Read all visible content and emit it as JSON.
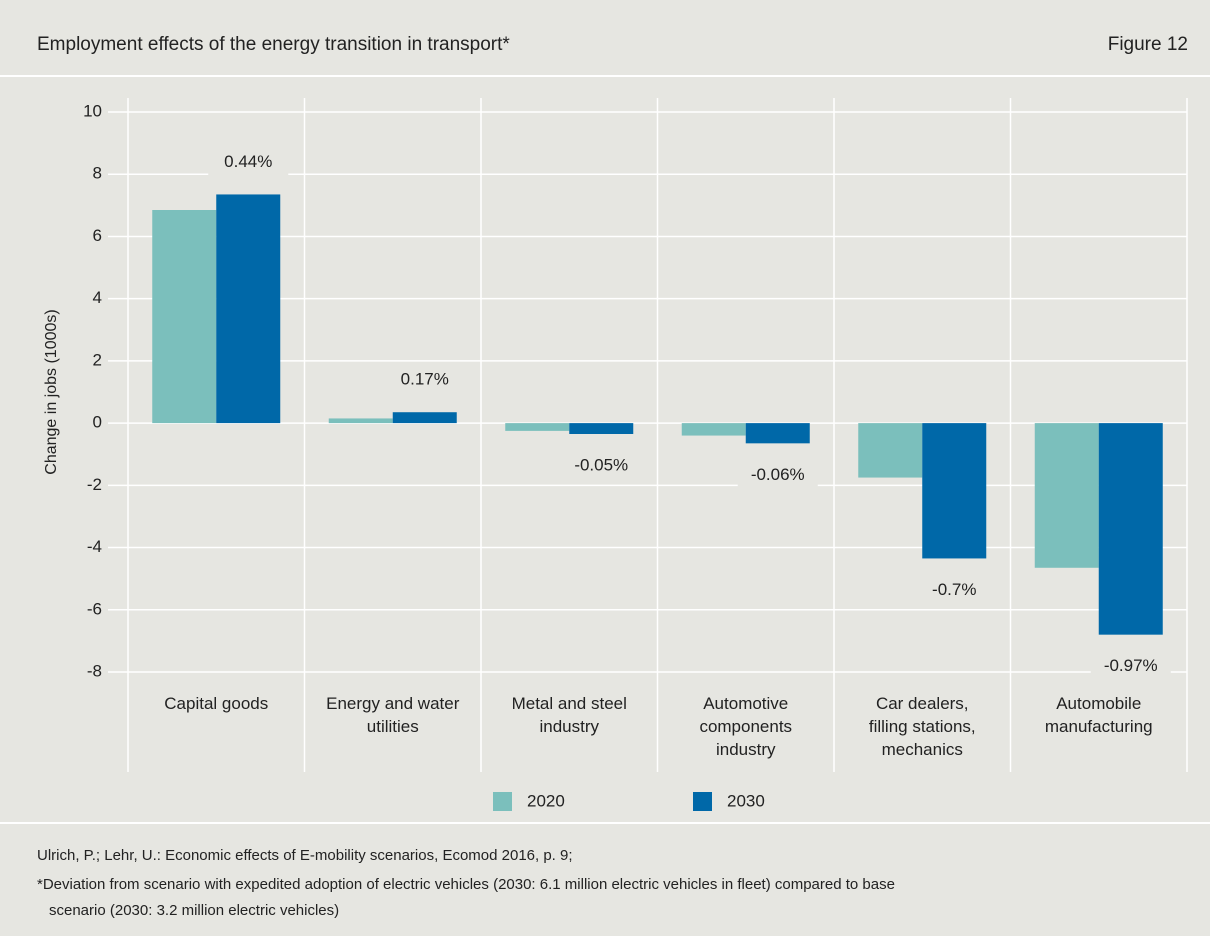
{
  "title": "Employment effects of the energy transition in transport*",
  "figure_label": "Figure 12",
  "chart_data": {
    "type": "bar",
    "ylabel": "Change in jobs (1000s)",
    "categories": [
      [
        "Capital goods"
      ],
      [
        "Energy and water",
        "utilities"
      ],
      [
        "Metal and steel",
        "industry"
      ],
      [
        "Automotive",
        "components",
        "industry"
      ],
      [
        "Car dealers,",
        "filling stations,",
        "mechanics"
      ],
      [
        "Automobile",
        "manufacturing"
      ]
    ],
    "series": [
      {
        "name": "2020",
        "color": "#7bbfbc",
        "values": [
          6.85,
          0.15,
          -0.25,
          -0.4,
          -1.75,
          -4.65
        ]
      },
      {
        "name": "2030",
        "color": "#0068a8",
        "values": [
          7.35,
          0.35,
          -0.35,
          -0.65,
          -4.35,
          -6.8
        ]
      }
    ],
    "annotations": [
      "0.44%",
      "0.17%",
      "-0.05%",
      "-0.06%",
      "-0.7%",
      "-0.97%"
    ],
    "ylim": [
      -8,
      10
    ],
    "yticks": [
      -8,
      -6,
      -4,
      -2,
      0,
      2,
      4,
      6,
      8,
      10
    ],
    "grid": true
  },
  "footer": {
    "source": "Ulrich, P.; Lehr, U.: Economic effects of E-mobility scenarios, Ecomod 2016, p. 9;",
    "footnote": [
      "*Deviation from scenario with expedited adoption of electric vehicles (2030: 6.1 million electric vehicles in fleet) compared to base",
      "scenario (2030: 3.2 million electric vehicles)"
    ]
  }
}
